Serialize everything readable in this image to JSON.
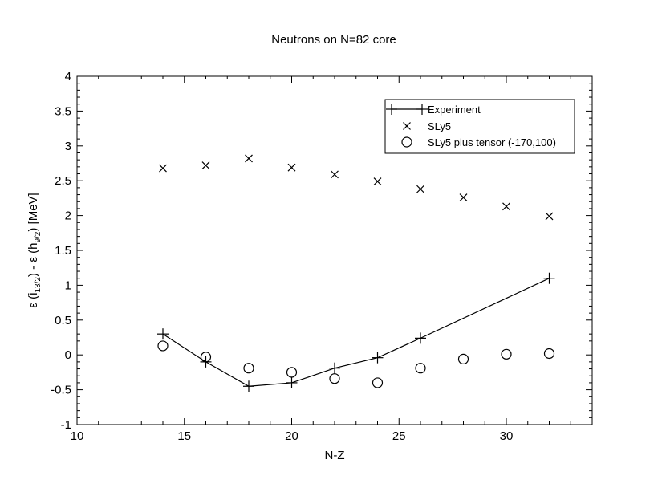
{
  "chart_data": {
    "type": "scatter",
    "title": "Neutrons on N=82 core",
    "xlabel": "N-Z",
    "ylabel": {
      "prefix": "ε (i",
      "sub1": "13/2",
      "middle": ") - ε (h",
      "sub2": "9/2",
      "suffix": ")  [MeV]"
    },
    "xlim": [
      10,
      34
    ],
    "ylim": [
      -1,
      4
    ],
    "x_ticks": [
      10,
      15,
      20,
      25,
      30
    ],
    "x_tick_labels": [
      "10",
      "15",
      "20",
      "25",
      "30"
    ],
    "y_ticks": [
      -1,
      -0.5,
      0,
      0.5,
      1,
      1.5,
      2,
      2.5,
      3,
      3.5,
      4
    ],
    "y_tick_labels": [
      "-1",
      "-0.5",
      "0",
      "0.5",
      "1",
      "1.5",
      "2",
      "2.5",
      "3",
      "3.5",
      "4"
    ],
    "grid": false,
    "legend_position": "top-right",
    "series": [
      {
        "name": "Experiment",
        "marker": "plus",
        "line": true,
        "x": [
          14,
          16,
          18,
          20,
          22,
          24,
          26,
          32
        ],
        "y": [
          0.3,
          -0.1,
          -0.45,
          -0.4,
          -0.19,
          -0.04,
          0.24,
          1.1
        ]
      },
      {
        "name": "SLy5",
        "marker": "cross",
        "line": false,
        "x": [
          14,
          16,
          18,
          20,
          22,
          24,
          26,
          28,
          30,
          32
        ],
        "y": [
          2.68,
          2.72,
          2.82,
          2.69,
          2.59,
          2.49,
          2.38,
          2.26,
          2.13,
          1.99
        ]
      },
      {
        "name": "SLy5 plus tensor (-170,100)",
        "marker": "circle",
        "line": false,
        "x": [
          14,
          16,
          18,
          20,
          22,
          24,
          26,
          28,
          30,
          32
        ],
        "y": [
          0.13,
          -0.03,
          -0.19,
          -0.25,
          -0.34,
          -0.4,
          -0.19,
          -0.06,
          0.01,
          0.02
        ]
      }
    ]
  }
}
